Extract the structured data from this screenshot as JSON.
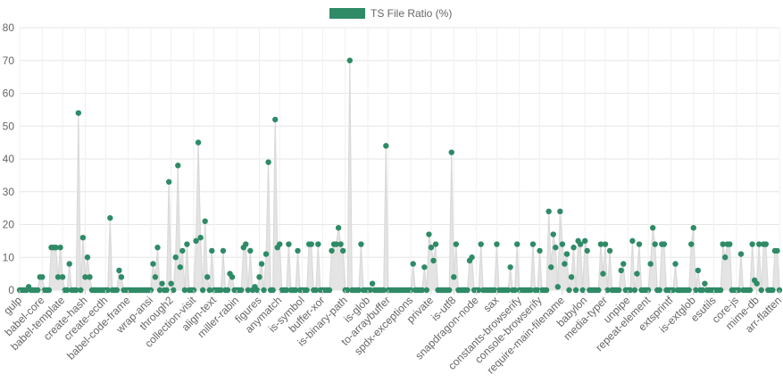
{
  "chart_data": {
    "type": "line",
    "legend": {
      "position": "top-center"
    },
    "grid": true,
    "ylim": [
      0,
      80
    ],
    "yticks": [
      0,
      10,
      20,
      30,
      40,
      50,
      60,
      70,
      80
    ],
    "x_tick_labels": [
      "gulp",
      "babel-core",
      "babel-template",
      "create-hash",
      "create-ecdh",
      "babel-code-frame",
      "wrap-ansi",
      "through2",
      "collection-visit",
      "align-text",
      "miller-rabin",
      "figures",
      "anymatch",
      "is-symbol",
      "buffer-xor",
      "is-binary-path",
      "is-glob",
      "to-arraybuffer",
      "spdx-exceptions",
      "private",
      "is-utf8",
      "snapdragon-node",
      "sax",
      "constants-browserify",
      "console-browserify",
      "require-main-filename",
      "babylon",
      "media-typer",
      "unpipe",
      "repeat-element",
      "extsprintf",
      "is-extglob",
      "esutils",
      "core-js",
      "mime-db",
      "arr-flatten"
    ],
    "series": [
      {
        "name": "TS File Ratio (%)",
        "color": "#2e8b66",
        "fill_color": "#e4e4e4",
        "values": [
          0,
          0,
          0,
          0,
          1,
          0,
          0,
          0,
          0,
          4,
          4,
          0,
          0,
          0,
          13,
          13,
          13,
          4,
          13,
          4,
          0,
          0,
          8,
          0,
          0,
          0,
          54,
          0,
          16,
          4,
          10,
          4,
          0,
          0,
          0,
          0,
          0,
          0,
          0,
          0,
          22,
          0,
          0,
          0,
          6,
          4,
          0,
          0,
          0,
          0,
          0,
          0,
          0,
          0,
          0,
          0,
          0,
          0,
          0,
          8,
          4,
          13,
          0,
          2,
          0,
          0,
          33,
          2,
          0,
          10,
          38,
          7,
          12,
          0,
          14,
          0,
          0,
          0,
          15,
          45,
          16,
          0,
          21,
          4,
          0,
          12,
          0,
          0,
          0,
          0,
          12,
          0,
          0,
          5,
          4,
          0,
          0,
          0,
          0,
          13,
          14,
          0,
          12,
          0,
          1,
          0,
          4,
          8,
          0,
          11,
          39,
          0,
          0,
          52,
          13,
          14,
          0,
          0,
          0,
          14,
          0,
          0,
          0,
          12,
          0,
          0,
          0,
          0,
          14,
          14,
          0,
          0,
          14,
          0,
          0,
          0,
          0,
          0,
          12,
          14,
          14,
          19,
          14,
          12,
          0,
          0,
          70,
          0,
          0,
          0,
          0,
          14,
          0,
          0,
          0,
          0,
          2,
          0,
          0,
          0,
          0,
          0,
          44,
          0,
          0,
          0,
          0,
          0,
          0,
          0,
          0,
          0,
          0,
          0,
          8,
          0,
          0,
          0,
          0,
          7,
          0,
          17,
          13,
          9,
          14,
          0,
          0,
          0,
          0,
          0,
          0,
          42,
          4,
          14,
          0,
          0,
          0,
          0,
          0,
          9,
          10,
          0,
          0,
          0,
          14,
          0,
          0,
          0,
          0,
          0,
          0,
          14,
          0,
          0,
          0,
          0,
          0,
          7,
          0,
          0,
          14,
          0,
          0,
          0,
          0,
          0,
          0,
          14,
          0,
          0,
          12,
          0,
          0,
          0,
          24,
          7,
          17,
          13,
          1,
          24,
          14,
          8,
          11,
          0,
          4,
          13,
          0,
          15,
          14,
          0,
          15,
          12,
          0,
          0,
          0,
          0,
          0,
          14,
          5,
          14,
          0,
          12,
          0,
          0,
          0,
          0,
          6,
          8,
          0,
          0,
          0,
          15,
          0,
          5,
          14,
          0,
          0,
          0,
          0,
          8,
          19,
          14,
          0,
          0,
          14,
          14,
          0,
          0,
          0,
          0,
          8,
          0,
          0,
          0,
          0,
          0,
          0,
          14,
          19,
          0,
          6,
          0,
          0,
          2,
          0,
          0,
          0,
          0,
          0,
          0,
          0,
          14,
          10,
          14,
          14,
          0,
          0,
          0,
          0,
          11,
          0,
          0,
          0,
          0,
          14,
          3,
          2,
          14,
          0,
          14,
          14,
          0,
          0,
          0,
          12,
          12,
          0
        ]
      }
    ]
  }
}
